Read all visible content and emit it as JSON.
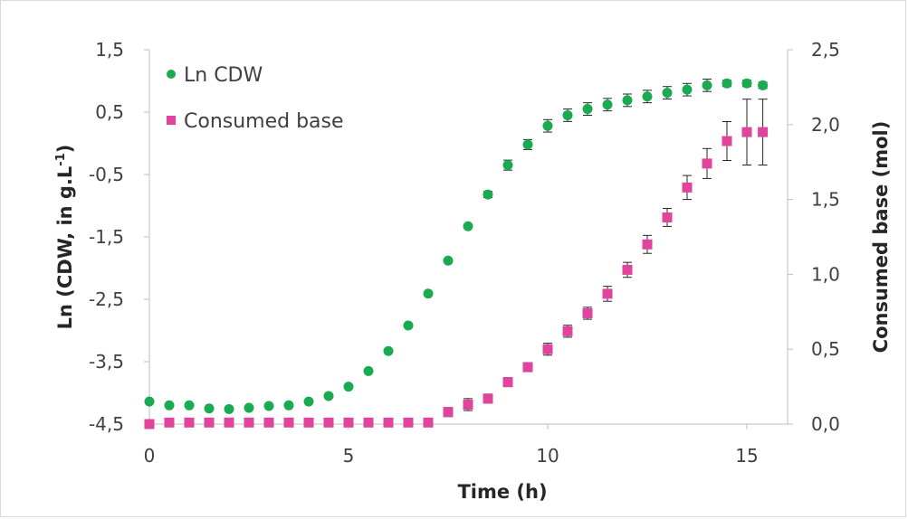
{
  "chart_data": {
    "type": "scatter",
    "xlabel": "Time (h)",
    "ylabel_left": "Ln (CDW, in g.L",
    "ylabel_left_sup": "-1",
    "ylabel_left_end": ")",
    "ylabel_right": "Consumed base (mol)",
    "xlim": [
      0,
      16
    ],
    "ylim_left": [
      -4.5,
      1.5
    ],
    "ylim_right": [
      0.0,
      2.5
    ],
    "x_ticks": [
      "0",
      "5",
      "10",
      "15"
    ],
    "x_tick_values": [
      0,
      5,
      10,
      15
    ],
    "y_left_ticks": [
      "1,5",
      "0,5",
      "-0,5",
      "-1,5",
      "-2,5",
      "-3,5",
      "-4,5"
    ],
    "y_left_tick_values": [
      1.5,
      0.5,
      -0.5,
      -1.5,
      -2.5,
      -3.5,
      -4.5
    ],
    "y_right_ticks": [
      "2,5",
      "2,0",
      "1,5",
      "1,0",
      "0,5",
      "0,0"
    ],
    "y_right_tick_values": [
      2.5,
      2.0,
      1.5,
      1.0,
      0.5,
      0.0
    ],
    "legend_position": "top-left",
    "grid": false,
    "series": [
      {
        "name": "Ln CDW",
        "axis": "left",
        "marker": "circle",
        "color": "#1aab52",
        "x": [
          0,
          0.5,
          1,
          1.5,
          2,
          2.5,
          3,
          3.5,
          4,
          4.5,
          5,
          5.5,
          6,
          6.5,
          7,
          7.5,
          8,
          8.5,
          9,
          9.5,
          10,
          10.5,
          11,
          11.5,
          12,
          12.5,
          13,
          13.5,
          14,
          14.5,
          15,
          15.4
        ],
        "y": [
          -4.14,
          -4.2,
          -4.2,
          -4.25,
          -4.26,
          -4.24,
          -4.21,
          -4.2,
          -4.14,
          -4.05,
          -3.9,
          -3.65,
          -3.33,
          -2.92,
          -2.41,
          -1.88,
          -1.33,
          -0.82,
          -0.35,
          -0.02,
          0.28,
          0.45,
          0.55,
          0.62,
          0.69,
          0.75,
          0.81,
          0.86,
          0.93,
          0.96,
          0.96,
          0.93
        ],
        "err": [
          0,
          0,
          0,
          0,
          0,
          0,
          0,
          0,
          0,
          0,
          0,
          0,
          0,
          0,
          0,
          0,
          0,
          0.05,
          0.08,
          0.08,
          0.1,
          0.1,
          0.1,
          0.1,
          0.1,
          0.1,
          0.1,
          0.1,
          0.1,
          0.05,
          0.05,
          0.05
        ]
      },
      {
        "name": "Consumed base",
        "axis": "right",
        "marker": "square",
        "color": "#e0449c",
        "x": [
          0,
          0.5,
          1,
          1.5,
          2,
          2.5,
          3,
          3.5,
          4,
          4.5,
          5,
          5.5,
          6,
          6.5,
          7,
          7.5,
          8,
          8.5,
          9,
          9.5,
          10,
          10.5,
          11,
          11.5,
          12,
          12.5,
          13,
          13.5,
          14,
          14.5,
          15,
          15.4
        ],
        "y": [
          0.0,
          0.01,
          0.01,
          0.01,
          0.01,
          0.01,
          0.01,
          0.01,
          0.01,
          0.01,
          0.01,
          0.01,
          0.01,
          0.01,
          0.01,
          0.08,
          0.13,
          0.17,
          0.28,
          0.38,
          0.5,
          0.62,
          0.74,
          0.87,
          1.03,
          1.2,
          1.38,
          1.58,
          1.74,
          1.89,
          1.95,
          1.95
        ],
        "err": [
          0,
          0,
          0,
          0,
          0,
          0,
          0,
          0,
          0,
          0,
          0,
          0,
          0,
          0,
          0,
          0.03,
          0.04,
          0.03,
          0.03,
          0.03,
          0.04,
          0.04,
          0.04,
          0.05,
          0.05,
          0.06,
          0.06,
          0.08,
          0.1,
          0.13,
          0.22,
          0.22
        ]
      }
    ]
  }
}
